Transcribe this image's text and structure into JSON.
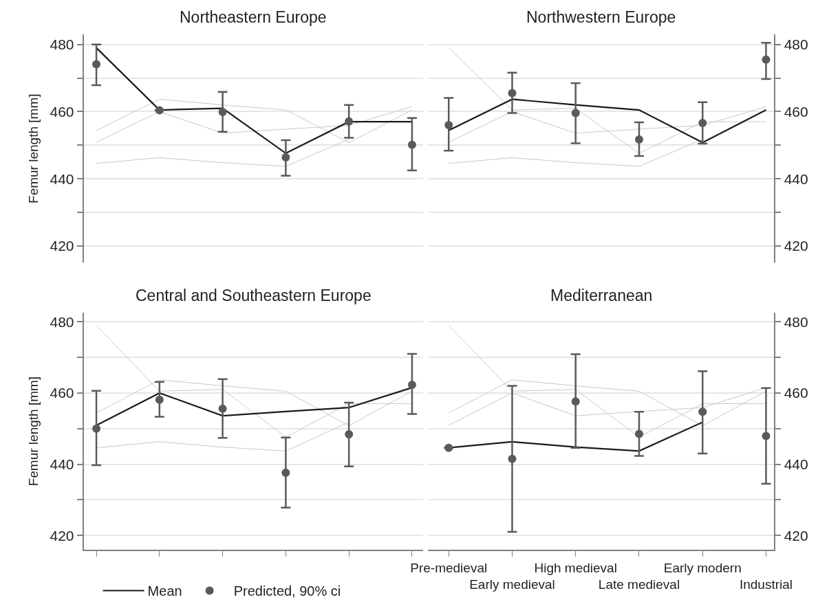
{
  "chart_data": [
    {
      "type": "line",
      "title": "Northeastern Europe",
      "ylabel": "Femur length [mm]",
      "categories": [
        null,
        null,
        null,
        null,
        null,
        null
      ],
      "ylim": [
        415,
        483
      ],
      "yticks": [
        420,
        {
          "value": 430,
          "label": null
        },
        440,
        {
          "value": 450,
          "label": null
        },
        460,
        {
          "value": 470,
          "label": null
        },
        480
      ],
      "grid": "y",
      "tick_labels": "y",
      "series": [
        {
          "color": "#c8c8c8",
          "values": [
            454.4,
            463.7,
            462,
            460.5,
            450.8,
            460.5
          ]
        },
        {
          "color": "#c8c8c8",
          "values": [
            450.9,
            460,
            453.6,
            454.8,
            455.9,
            461.5
          ]
        },
        {
          "color": "#c8c8c8",
          "values": [
            444.6,
            446.3,
            444.8,
            443.7,
            451.8,
            null
          ]
        },
        {
          "type": "line",
          "color": "#1a1a1a",
          "values": [
            479,
            460.5,
            461,
            447.6,
            457,
            457
          ]
        },
        {
          "type": "scatter",
          "color": "#5a5a5a",
          "marker": "circle",
          "values": [
            474.1,
            460.4,
            459.9,
            446.4,
            457.1,
            450.1
          ],
          "errors": [
            [
              467.9,
              480
            ],
            null,
            [
              454,
              465.9
            ],
            [
              440.9,
              451.5
            ],
            [
              452.2,
              462
            ],
            [
              442.5,
              458.1
            ]
          ]
        }
      ]
    },
    {
      "type": "line",
      "title": "Northwestern Europe",
      "categories": [
        null,
        null,
        null,
        null,
        null,
        null
      ],
      "ylim": [
        415,
        483
      ],
      "yticks": [
        420,
        {
          "value": 430,
          "label": null
        },
        440,
        {
          "value": 450,
          "label": null
        },
        460,
        {
          "value": 470,
          "label": null
        },
        480
      ],
      "grid": "y",
      "tick_labels": "y",
      "series": [
        {
          "color": "#c8c8c8",
          "values": [
            479,
            460.5,
            461,
            447.6,
            457,
            457
          ]
        },
        {
          "color": "#c8c8c8",
          "values": [
            450.9,
            460,
            453.6,
            454.8,
            455.9,
            461.5
          ]
        },
        {
          "color": "#c8c8c8",
          "values": [
            444.6,
            446.3,
            444.8,
            443.7,
            451.8,
            null
          ]
        },
        {
          "type": "line",
          "color": "#1a1a1a",
          "values": [
            454.4,
            463.7,
            462,
            460.5,
            450.8,
            460.5
          ]
        },
        {
          "type": "scatter",
          "color": "#5a5a5a",
          "marker": "circle",
          "values": [
            456,
            465.5,
            459.6,
            451.7,
            456.6,
            475.5
          ],
          "errors": [
            [
              448.4,
              464.1
            ],
            [
              459.6,
              471.6
            ],
            [
              450.6,
              468.5
            ],
            [
              446.8,
              456.8
            ],
            [
              450.5,
              462.8
            ],
            [
              469.7,
              480.5
            ]
          ]
        }
      ]
    },
    {
      "type": "line",
      "title": "Central and Southeastern Europe",
      "ylabel": "Femur length [mm]",
      "categories": [
        null,
        null,
        null,
        null,
        null,
        null
      ],
      "ylim": [
        416,
        482.5
      ],
      "yticks": [
        420,
        {
          "value": 430,
          "label": null
        },
        440,
        {
          "value": 450,
          "label": null
        },
        460,
        {
          "value": 470,
          "label": null
        },
        480
      ],
      "grid": "y",
      "tick_labels": "y",
      "legend": "bottom",
      "series": [
        {
          "color": "#c8c8c8",
          "values": [
            479,
            460.5,
            461,
            447.6,
            457,
            457
          ]
        },
        {
          "color": "#c8c8c8",
          "values": [
            454.4,
            463.7,
            462,
            460.5,
            450.8,
            460.5
          ]
        },
        {
          "color": "#c8c8c8",
          "values": [
            444.6,
            446.3,
            444.8,
            443.7,
            451.8,
            null
          ]
        },
        {
          "type": "line",
          "name": "Mean",
          "color": "#1a1a1a",
          "values": [
            450.9,
            460,
            453.6,
            454.8,
            455.9,
            461.5
          ]
        },
        {
          "type": "scatter",
          "name": "Predicted, 90% ci",
          "color": "#5a5a5a",
          "marker": "circle",
          "values": [
            450,
            458.1,
            455.6,
            437.6,
            448.4,
            462.3
          ],
          "errors": [
            [
              439.7,
              460.6
            ],
            [
              453.3,
              463.1
            ],
            [
              447.4,
              463.9
            ],
            [
              427.8,
              447.5
            ],
            [
              439.4,
              457.3
            ],
            [
              454.1,
              471
            ]
          ]
        }
      ]
    },
    {
      "type": "line",
      "title": "Mediterranean",
      "categories": [
        "Pre-medieval",
        "Early medieval",
        "High medieval",
        "Late medieval",
        "Early modern",
        "Industrial"
      ],
      "ylim": [
        416,
        482.5
      ],
      "yticks": [
        420,
        {
          "value": 430,
          "label": null
        },
        440,
        {
          "value": 450,
          "label": null
        },
        460,
        {
          "value": 470,
          "label": null
        },
        480
      ],
      "grid": "y",
      "series": [
        {
          "color": "#c8c8c8",
          "values": [
            479,
            460.5,
            461,
            447.6,
            457,
            457
          ]
        },
        {
          "color": "#c8c8c8",
          "values": [
            454.4,
            463.7,
            462,
            460.5,
            450.8,
            460.5
          ]
        },
        {
          "color": "#c8c8c8",
          "values": [
            450.9,
            460,
            453.6,
            454.8,
            455.9,
            461.5
          ]
        },
        {
          "type": "line",
          "color": "#1a1a1a",
          "values": [
            444.6,
            446.3,
            444.8,
            443.7,
            451.8,
            null
          ]
        },
        {
          "type": "scatter",
          "color": "#5a5a5a",
          "marker": "circle",
          "values": [
            444.6,
            441.5,
            457.6,
            448.5,
            454.7,
            447.9
          ],
          "errors": [
            null,
            [
              421,
              462
            ],
            [
              444.6,
              470.9
            ],
            [
              442.3,
              454.7
            ],
            [
              443,
              466.1
            ],
            [
              434.5,
              461.4
            ]
          ]
        }
      ]
    }
  ]
}
